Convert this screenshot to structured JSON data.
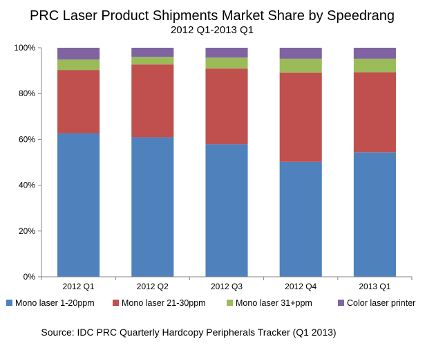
{
  "chart_data": {
    "type": "bar",
    "stacked": true,
    "title": "PRC Laser Product Shipments Market Share by Speedrang",
    "subtitle": "2012 Q1-2013 Q1",
    "xlabel": "",
    "ylabel": "",
    "ylim": [
      0,
      100
    ],
    "yticks": [
      "0%",
      "20%",
      "40%",
      "60%",
      "80%",
      "100%"
    ],
    "categories": [
      "2012 Q1",
      "2012 Q2",
      "2012 Q3",
      "2012 Q4",
      "2013 Q1"
    ],
    "series": [
      {
        "name": "Mono laser 1-20ppm",
        "color": "#4F81BD",
        "values": [
          62.7,
          60.9,
          57.9,
          50.2,
          54.3
        ]
      },
      {
        "name": "Mono laser 21-30ppm",
        "color": "#C0504D",
        "values": [
          27.6,
          31.8,
          33.0,
          39.0,
          35.0
        ]
      },
      {
        "name": "Mono laser 31+ppm",
        "color": "#9BBB59",
        "values": [
          4.6,
          3.3,
          4.8,
          6.0,
          5.9
        ]
      },
      {
        "name": "Color laser printer",
        "color": "#8064A2",
        "values": [
          5.1,
          4.0,
          4.3,
          4.8,
          4.8
        ]
      }
    ],
    "grid": false,
    "legend_position": "bottom"
  },
  "source": "Source: IDC PRC Quarterly Hardcopy Peripherals Tracker (Q1 2013)"
}
